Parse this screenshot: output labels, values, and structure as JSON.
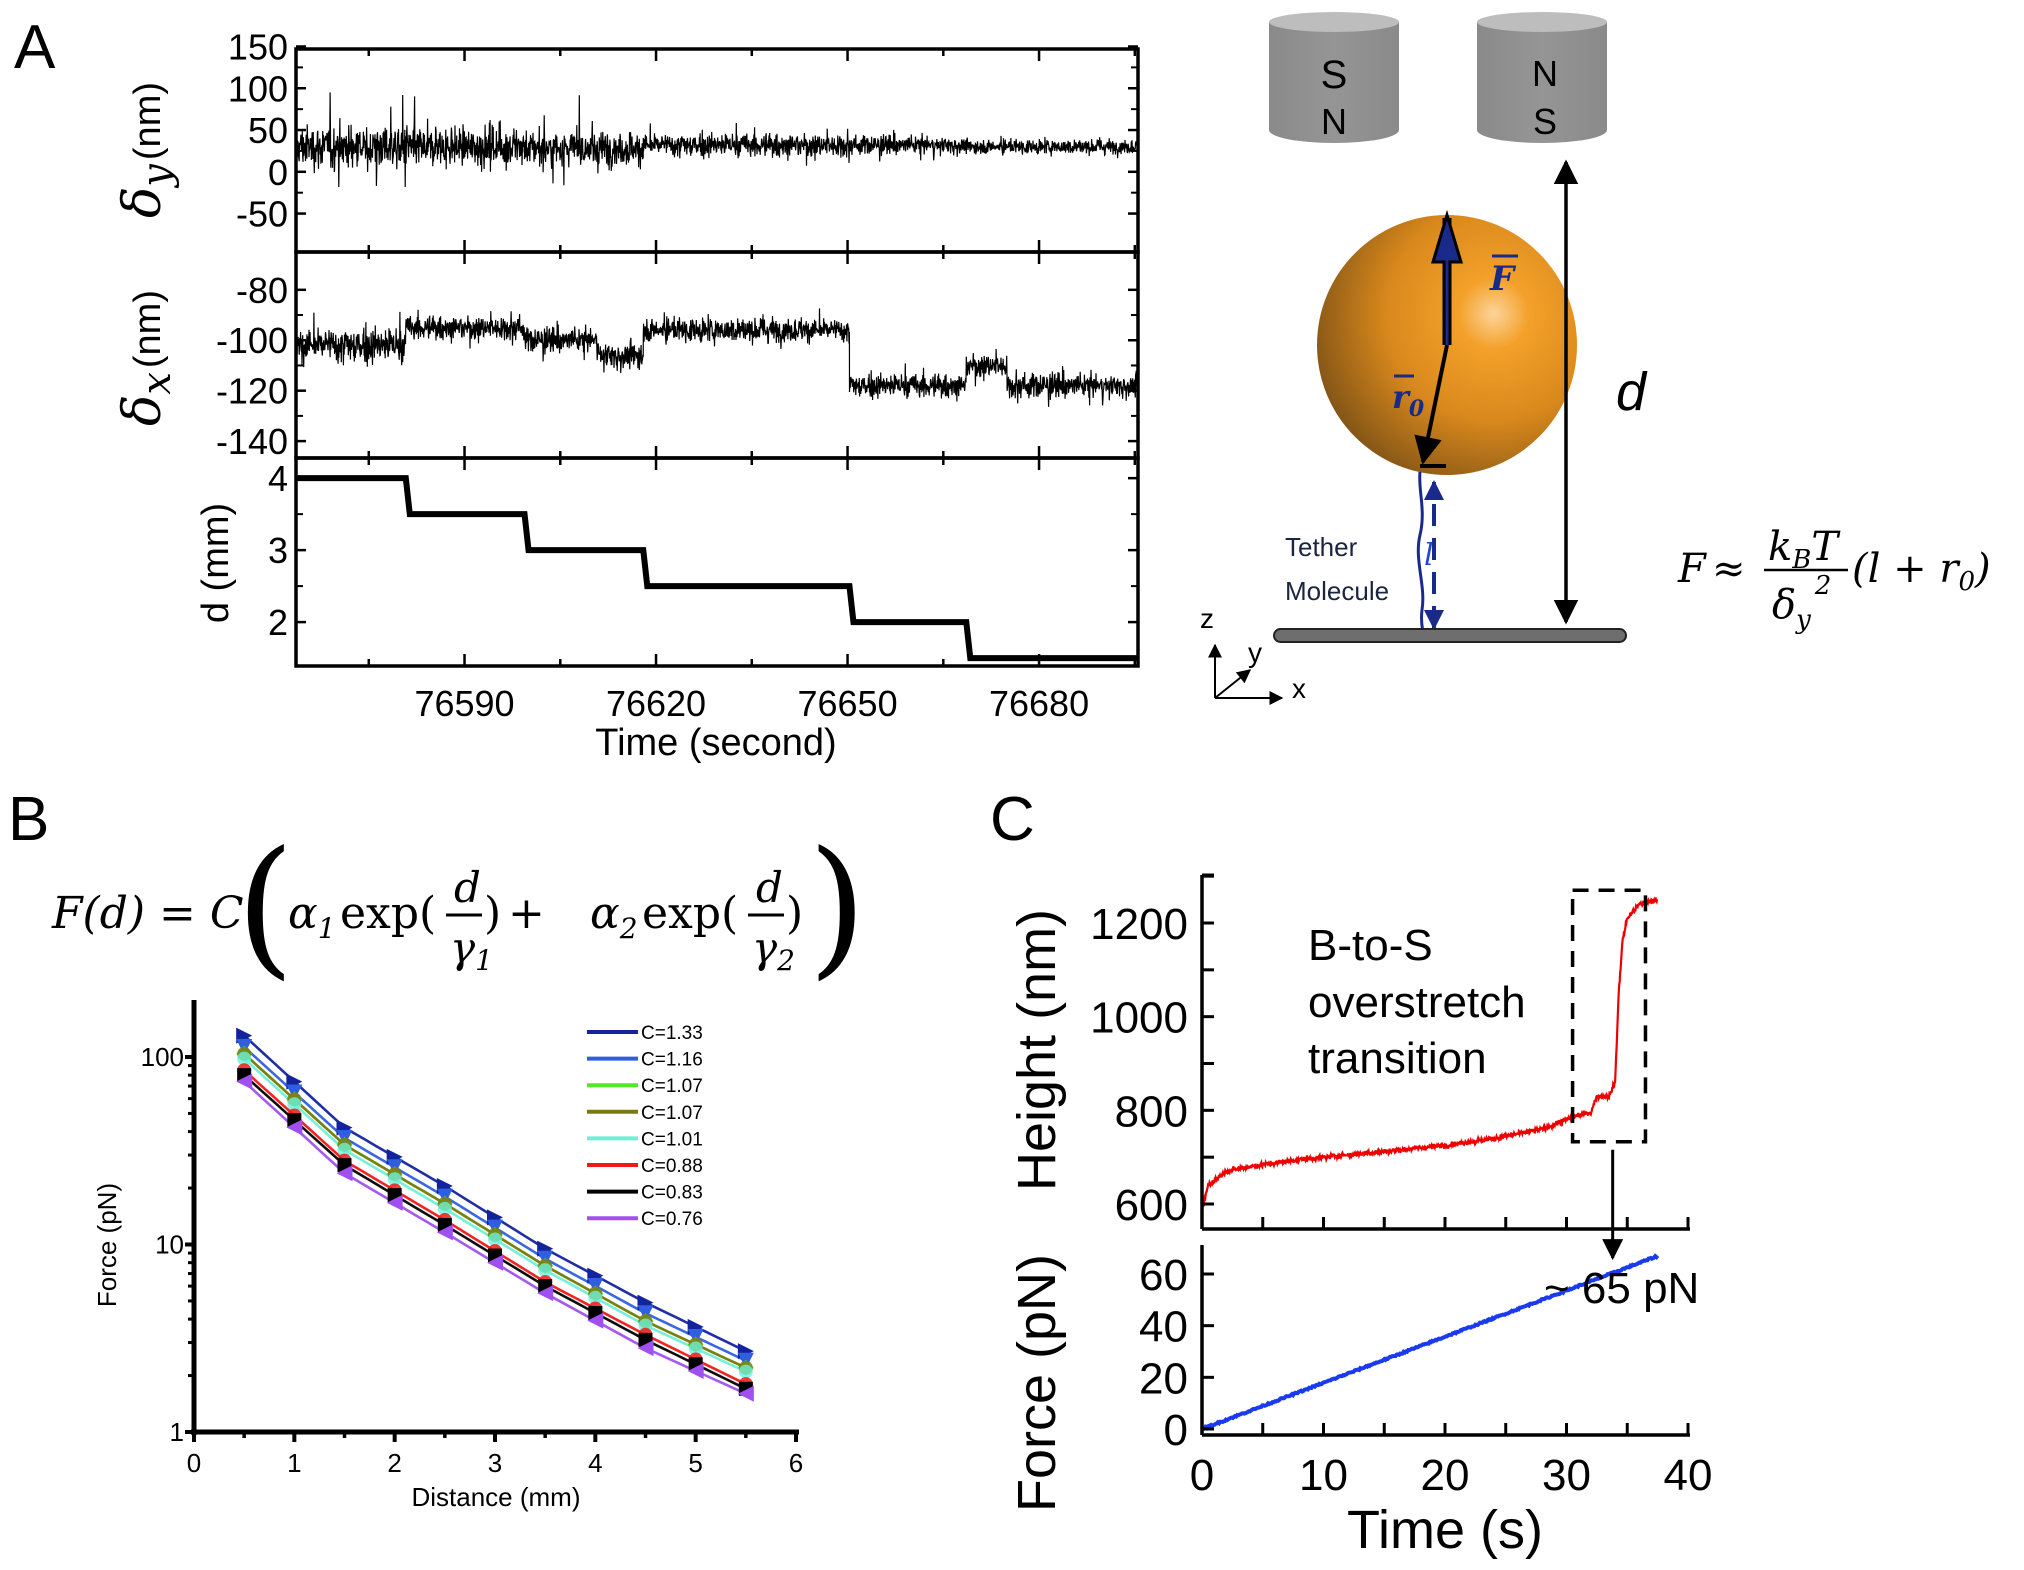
{
  "figure": {
    "panels": {
      "A": {
        "label": "A"
      },
      "B": {
        "label": "B"
      },
      "C": {
        "label": "C"
      }
    },
    "schematic": {
      "magnet_left": {
        "top": "S",
        "bottom": "N"
      },
      "magnet_right": {
        "top": "N",
        "bottom": "S"
      },
      "force_vector": "F",
      "radius_vector": "r",
      "radius_subscript": "0",
      "tether_length": "l",
      "distance": "d",
      "tether_label_line1": "Tether",
      "tether_label_line2": "Molecule",
      "axes": {
        "z": "z",
        "y": "y",
        "x": "x"
      },
      "formula": {
        "lhs": "F",
        "approx": "≈",
        "num_k": "k",
        "num_sub": "B",
        "num_T": "T",
        "den_delta": "δ",
        "den_sub": "y",
        "den_sup": "2",
        "paren": "(l + r",
        "paren_sub": "0",
        "paren_close": ")"
      },
      "colors": {
        "sphere": "#e8961e",
        "magnet": "#8c8c8c",
        "vector_blue": "#1a2a8a"
      }
    },
    "formulaB": {
      "lhs": "F(d) = C",
      "a1": "α",
      "a1_sub": "1",
      "exp1": "exp(",
      "d1": "d",
      "g1": "γ",
      "g1_sub": "1",
      "close1": ")",
      "plus": "+",
      "a2": "α",
      "a2_sub": "2",
      "exp2": "exp(",
      "d2": "d",
      "g2": "γ",
      "g2_sub": "2",
      "close2": ")"
    },
    "annotationC": {
      "line1": "B-to-S",
      "line2": "overstretch",
      "line3": "transition",
      "force_note": "~ 65 pN"
    }
  },
  "chart_data": [
    {
      "id": "A-dy",
      "type": "line",
      "title": "",
      "ylabel_symbol": "δ",
      "ylabel_sub": "y",
      "ylabel_unit": "(nm)",
      "ylim": [
        -96,
        147
      ],
      "yticks": [
        150,
        100,
        50,
        0,
        -50
      ],
      "xlim": [
        76563.6,
        76695.5
      ],
      "color": "#000000",
      "segments": [
        {
          "t0": 76563.6,
          "t1": 76580.8,
          "mean": 30,
          "noise": 32
        },
        {
          "t0": 76580.8,
          "t1": 76599.4,
          "mean": 30,
          "noise": 30
        },
        {
          "t0": 76599.4,
          "t1": 76618.0,
          "mean": 28,
          "noise": 26
        },
        {
          "t0": 76618.0,
          "t1": 76650.3,
          "mean": 32,
          "noise": 18
        },
        {
          "t0": 76650.3,
          "t1": 76668.6,
          "mean": 32,
          "noise": 14
        },
        {
          "t0": 76668.6,
          "t1": 76695.5,
          "mean": 30,
          "noise": 11
        }
      ]
    },
    {
      "id": "A-dx",
      "type": "line",
      "ylabel_symbol": "δ",
      "ylabel_sub": "x",
      "ylabel_unit": "(nm)",
      "ylim": [
        -146.7,
        -65
      ],
      "yticks": [
        -80,
        -100,
        -120,
        -140
      ],
      "xlim": [
        76563.6,
        76695.5
      ],
      "color": "#000000",
      "segments": [
        {
          "t0": 76563.6,
          "t1": 76580.8,
          "mean": -102,
          "noise": 9
        },
        {
          "t0": 76580.8,
          "t1": 76599.4,
          "mean": -95,
          "noise": 6
        },
        {
          "t0": 76599.4,
          "t1": 76611.0,
          "mean": -100,
          "noise": 6
        },
        {
          "t0": 76611.0,
          "t1": 76618.0,
          "mean": -106,
          "noise": 7
        },
        {
          "t0": 76618.0,
          "t1": 76650.3,
          "mean": -96,
          "noise": 6
        },
        {
          "t0": 76650.3,
          "t1": 76668.6,
          "mean": -118,
          "noise": 6
        },
        {
          "t0": 76668.6,
          "t1": 76675.0,
          "mean": -110,
          "noise": 6
        },
        {
          "t0": 76675.0,
          "t1": 76695.5,
          "mean": -118,
          "noise": 6
        }
      ]
    },
    {
      "id": "A-d",
      "type": "line",
      "ylabel": "d (mm)",
      "ylim": [
        1.39,
        4.28
      ],
      "yticks": [
        4,
        3,
        2
      ],
      "xlabel": "Time (second)",
      "xticks": [
        76590,
        76620,
        76650,
        76680
      ],
      "xlim": [
        76563.6,
        76695.5
      ],
      "color": "#000000",
      "steps": [
        {
          "t": 76563.6,
          "d": 4.0
        },
        {
          "t": 76580.8,
          "d": 3.5
        },
        {
          "t": 76599.4,
          "d": 3.0
        },
        {
          "t": 76618.0,
          "d": 2.5
        },
        {
          "t": 76650.3,
          "d": 2.0
        },
        {
          "t": 76668.6,
          "d": 1.5
        }
      ]
    },
    {
      "id": "B",
      "type": "line",
      "scale_y": "log",
      "xlabel": "Distance (mm)",
      "ylabel": "Force (pN)",
      "xlim": [
        0,
        6
      ],
      "ylim": [
        1,
        200
      ],
      "xticks": [
        0,
        1,
        2,
        3,
        4,
        5,
        6
      ],
      "yticks": [
        {
          "v": 1,
          "label": "1"
        },
        {
          "v": 10,
          "label": "10"
        },
        {
          "v": 100,
          "label": "100"
        }
      ],
      "legend_position": "top-right",
      "x": [
        0.5,
        1.5,
        2.5,
        3.5,
        4.5,
        5.5
      ],
      "series": [
        {
          "name": "C=1.33",
          "color": "#13239c",
          "values": [
            130,
            42,
            20.5,
            9.5,
            4.9,
            2.7
          ],
          "marker": "triangle-right"
        },
        {
          "name": "C=1.16",
          "color": "#2f5ee0",
          "values": [
            113,
            37,
            18,
            8.4,
            4.3,
            2.4
          ],
          "marker": "triangle-down"
        },
        {
          "name": "C=1.07",
          "color": "#55e62a",
          "values": [
            104,
            34,
            16.5,
            7.7,
            3.9,
            2.2
          ],
          "marker": "diamond"
        },
        {
          "name": "C=1.07",
          "color": "#7a7a10",
          "values": [
            104,
            34,
            16.5,
            7.7,
            3.9,
            2.2
          ],
          "marker": "circle"
        },
        {
          "name": "C=1.01",
          "color": "#6ef0d8",
          "values": [
            98,
            32,
            15.5,
            7.3,
            3.7,
            2.1
          ],
          "marker": "star"
        },
        {
          "name": "C=0.88",
          "color": "#f01818",
          "values": [
            85,
            28,
            13.5,
            6.3,
            3.3,
            1.8
          ],
          "marker": "circle"
        },
        {
          "name": "C=0.83",
          "color": "#000000",
          "values": [
            80,
            26.5,
            12.7,
            6.0,
            3.1,
            1.7
          ],
          "marker": "square"
        },
        {
          "name": "C=0.76",
          "color": "#a050f0",
          "values": [
            74,
            24,
            11.6,
            5.5,
            2.8,
            1.6
          ],
          "marker": "triangle-left"
        }
      ]
    },
    {
      "id": "C-height",
      "type": "line",
      "ylabel": "Height (nm)",
      "ylim": [
        565,
        1300
      ],
      "yticks": [
        600,
        800,
        1000,
        1200
      ],
      "xlim": [
        0,
        40
      ],
      "color": "#ee0000",
      "points": [
        [
          0,
          585
        ],
        [
          0.5,
          640
        ],
        [
          2,
          670
        ],
        [
          4,
          680
        ],
        [
          8,
          695
        ],
        [
          12,
          705
        ],
        [
          16,
          715
        ],
        [
          20,
          725
        ],
        [
          24,
          740
        ],
        [
          28,
          760
        ],
        [
          30,
          780
        ],
        [
          31,
          790
        ],
        [
          32,
          795
        ],
        [
          32.5,
          830
        ],
        [
          33.5,
          830
        ],
        [
          34,
          860
        ],
        [
          34.3,
          1050
        ],
        [
          34.6,
          1160
        ],
        [
          35,
          1210
        ],
        [
          36,
          1240
        ],
        [
          37.5,
          1250
        ]
      ],
      "noise": 6,
      "highlight_box": {
        "t0": 30.5,
        "t1": 36.5,
        "h0": 733,
        "h1": 1270
      }
    },
    {
      "id": "C-force",
      "type": "line",
      "ylabel": "Force (pN)",
      "xlabel": "Time (s)",
      "ylim": [
        -2,
        70
      ],
      "yticks": [
        0,
        20,
        40,
        60
      ],
      "xticks": [
        0,
        10,
        20,
        30,
        40
      ],
      "xlim": [
        0,
        40
      ],
      "color": "#1a3af0",
      "points": [
        [
          0,
          0
        ],
        [
          37.5,
          67
        ]
      ]
    }
  ]
}
